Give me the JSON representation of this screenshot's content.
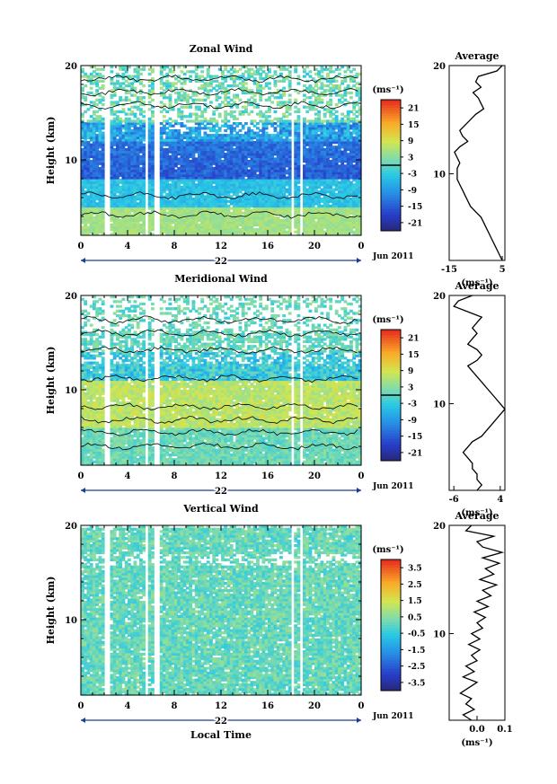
{
  "chart_data": [
    {
      "type": "heatmap",
      "title": "Zonal Wind",
      "ylabel": "Height (km)",
      "x_ticks": [
        "0",
        "4",
        "8",
        "12",
        "16",
        "20",
        "0"
      ],
      "y_ticks": [
        "10",
        "20"
      ],
      "date_label": "22",
      "date_suffix": "Jun 2011",
      "xlim": [
        0,
        24
      ],
      "ylim": [
        2,
        20
      ],
      "colorbar": {
        "unit": "(ms⁻¹)",
        "ticks": [
          "21",
          "15",
          "9",
          "3",
          "-3",
          "-9",
          "-15",
          "-21"
        ],
        "range": [
          -24,
          24
        ]
      },
      "average_profile": {
        "title": "Average",
        "unit": "(ms⁻¹)",
        "x_ticks": [
          "-15",
          "5"
        ],
        "xlim": [
          -15,
          6
        ],
        "y_ticks": [
          "10",
          "20"
        ],
        "height": [
          20,
          19.5,
          19,
          18.5,
          18,
          17.5,
          17,
          16.5,
          16,
          15.5,
          15,
          14.5,
          14,
          13.5,
          13,
          12.5,
          12,
          11.5,
          11,
          10.5,
          10,
          9.5,
          9,
          8.5,
          8,
          7.5,
          7,
          6.5,
          6,
          5.5,
          5,
          4.5,
          4,
          3.5,
          3,
          2.5,
          2
        ],
        "values": [
          5,
          3,
          -4,
          -5,
          -3,
          -6,
          -4,
          -3,
          -2,
          -5,
          -7,
          -9,
          -11,
          -10,
          -8,
          -11,
          -13,
          -12,
          -11,
          -12,
          -12,
          -12,
          -11,
          -10,
          -9,
          -8,
          -7,
          -5,
          -3,
          -2,
          -1,
          0,
          1,
          2,
          3,
          4,
          5
        ]
      }
    },
    {
      "type": "heatmap",
      "title": "Meridional Wind",
      "ylabel": "Height (km)",
      "x_ticks": [
        "0",
        "4",
        "8",
        "12",
        "16",
        "20",
        "0"
      ],
      "y_ticks": [
        "10",
        "20"
      ],
      "date_label": "22",
      "date_suffix": "Jun 2011",
      "xlim": [
        0,
        24
      ],
      "ylim": [
        2,
        20
      ],
      "colorbar": {
        "unit": "(ms⁻¹)",
        "ticks": [
          "21",
          "15",
          "9",
          "3",
          "-3",
          "-9",
          "-15",
          "-21"
        ],
        "range": [
          -24,
          24
        ]
      },
      "average_profile": {
        "title": "Average",
        "unit": "(ms⁻¹)",
        "x_ticks": [
          "-6",
          "4"
        ],
        "xlim": [
          -7,
          5
        ],
        "y_ticks": [
          "10",
          "20"
        ],
        "height": [
          20,
          19.5,
          19,
          18.5,
          18,
          17.5,
          17,
          16.5,
          16,
          15.5,
          15,
          14.5,
          14,
          13.5,
          13,
          12.5,
          12,
          11.5,
          11,
          10.5,
          10,
          9.5,
          9,
          8.5,
          8,
          7.5,
          7,
          6.5,
          6,
          5.5,
          5,
          4.5,
          4,
          3.5,
          3,
          2.5,
          2
        ],
        "values": [
          -2,
          -5,
          -6,
          -3,
          0,
          -1,
          -2,
          -1,
          -2,
          -3,
          -1,
          0,
          -1,
          -3,
          -2,
          -1,
          0,
          1,
          2,
          3,
          4,
          5,
          4,
          3,
          2,
          1,
          0,
          -2,
          -3,
          -4,
          -3,
          -2,
          -2,
          -1,
          -1,
          0,
          -1
        ]
      }
    },
    {
      "type": "heatmap",
      "title": "Vertical Wind",
      "ylabel": "Height (km)",
      "xlabel": "Local Time",
      "x_ticks": [
        "0",
        "4",
        "8",
        "12",
        "16",
        "20",
        "0"
      ],
      "y_ticks": [
        "10",
        "20"
      ],
      "date_label": "22",
      "date_suffix": "Jun 2011",
      "xlim": [
        0,
        24
      ],
      "ylim": [
        2,
        20
      ],
      "colorbar": {
        "unit": "(ms⁻¹)",
        "ticks": [
          "3.5",
          "2.5",
          "1.5",
          "0.5",
          "-0.5",
          "-1.5",
          "-2.5",
          "-3.5"
        ],
        "range": [
          -4,
          4
        ]
      },
      "average_profile": {
        "title": "Average",
        "unit": "(ms⁻¹)",
        "x_ticks": [
          "0.0",
          "0.1"
        ],
        "xlim": [
          -0.1,
          0.1
        ],
        "y_ticks": [
          "10",
          "20"
        ],
        "height": [
          20,
          19.5,
          19,
          18.5,
          18,
          17.5,
          17,
          16.5,
          16,
          15.5,
          15,
          14.5,
          14,
          13.5,
          13,
          12.5,
          12,
          11.5,
          11,
          10.5,
          10,
          9.5,
          9,
          8.5,
          8,
          7.5,
          7,
          6.5,
          6,
          5.5,
          5,
          4.5,
          4,
          3.5,
          3,
          2.5,
          2
        ],
        "values": [
          -0.02,
          -0.04,
          0.06,
          0.0,
          0.02,
          0.09,
          0.02,
          0.08,
          0.03,
          0.06,
          0.01,
          0.07,
          0.02,
          0.05,
          0.0,
          0.04,
          -0.01,
          0.03,
          0.0,
          0.02,
          -0.02,
          0.01,
          -0.03,
          0.01,
          -0.02,
          0.0,
          -0.04,
          -0.01,
          -0.05,
          0.0,
          -0.03,
          -0.06,
          -0.02,
          -0.04,
          -0.01,
          -0.05,
          -0.02
        ]
      }
    }
  ]
}
